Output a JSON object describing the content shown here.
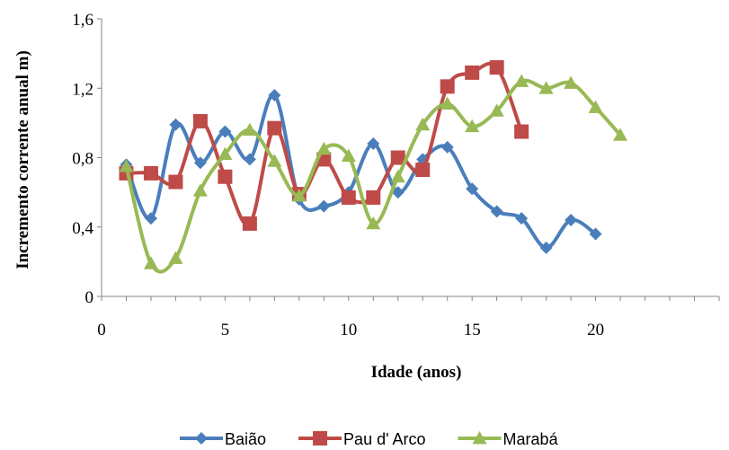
{
  "chart_data": {
    "type": "line",
    "xlabel": "Idade (anos)",
    "ylabel": "Incremento corrente anual m)",
    "xlim": [
      0,
      25
    ],
    "ylim": [
      0,
      1.6
    ],
    "x_ticks": [
      0,
      5,
      10,
      15,
      20
    ],
    "x_tick_labels": [
      "0",
      "5",
      "10",
      "15",
      "20"
    ],
    "y_ticks": [
      0,
      0.4,
      0.8,
      1.2,
      1.6
    ],
    "y_tick_labels": [
      "0",
      "0,4",
      "0,8",
      "1,2",
      "1,6"
    ],
    "grid": false,
    "smooth": true,
    "legend_position": "bottom",
    "series": [
      {
        "name": "Baião",
        "color": "#4a7ebb",
        "marker": "diamond",
        "x": [
          1,
          2,
          3,
          4,
          5,
          6,
          7,
          8,
          9,
          10,
          11,
          12,
          13,
          14,
          15,
          16,
          17,
          18,
          19,
          20
        ],
        "values": [
          0.76,
          0.45,
          0.99,
          0.77,
          0.95,
          0.79,
          1.16,
          0.56,
          0.52,
          0.6,
          0.88,
          0.6,
          0.79,
          0.86,
          0.62,
          0.49,
          0.45,
          0.28,
          0.44,
          0.36
        ]
      },
      {
        "name": "Pau d' Arco",
        "color": "#be4b48",
        "marker": "square",
        "x": [
          1,
          2,
          3,
          4,
          5,
          6,
          7,
          8,
          9,
          10,
          11,
          12,
          13,
          14,
          15,
          16,
          17
        ],
        "values": [
          0.71,
          0.71,
          0.66,
          1.01,
          0.69,
          0.42,
          0.97,
          0.59,
          0.79,
          0.57,
          0.57,
          0.8,
          0.73,
          1.21,
          1.29,
          1.32,
          0.95
        ]
      },
      {
        "name": "Marabá",
        "color": "#98b954",
        "marker": "triangle",
        "x": [
          1,
          2,
          3,
          4,
          5,
          6,
          7,
          8,
          9,
          10,
          11,
          12,
          13,
          14,
          15,
          16,
          17,
          18,
          19,
          20,
          21
        ],
        "values": [
          0.75,
          0.19,
          0.22,
          0.61,
          0.82,
          0.96,
          0.78,
          0.58,
          0.85,
          0.81,
          0.42,
          0.69,
          0.99,
          1.11,
          0.98,
          1.07,
          1.24,
          1.2,
          1.23,
          1.09,
          0.93
        ]
      }
    ]
  }
}
